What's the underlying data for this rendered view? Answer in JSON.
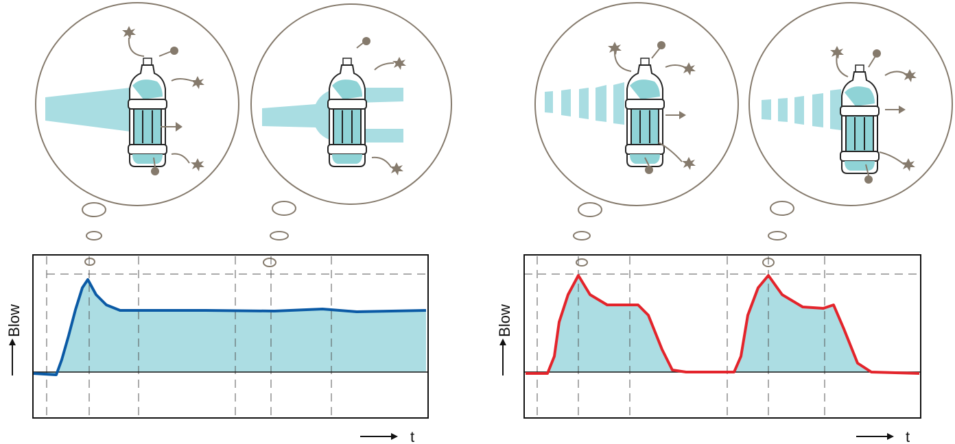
{
  "panels": [
    {
      "y_label": "Blow",
      "x_label": "t"
    },
    {
      "y_label": "Blow",
      "x_label": "t"
    }
  ]
}
